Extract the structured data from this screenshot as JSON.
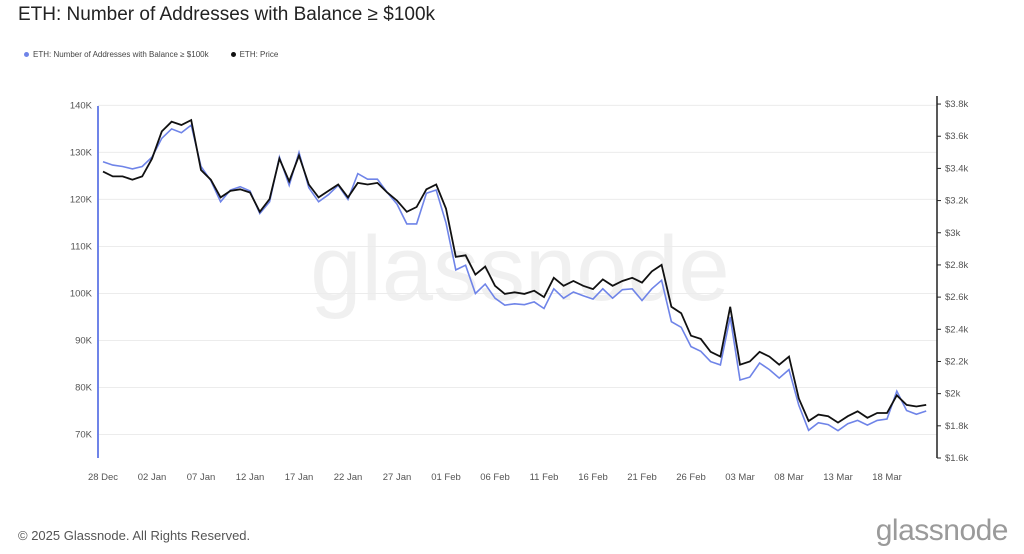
{
  "title": "ETH: Number of Addresses with Balance ≥ $100k",
  "footer": "© 2025 Glassnode. All Rights Reserved.",
  "logo_text": "glassnode",
  "watermark_text": "glassnode",
  "colors": {
    "addresses": "#6f84e8",
    "price": "#111111",
    "grid": "#ececec",
    "axis": "#222222"
  },
  "chart_data": {
    "type": "line",
    "x_ticks": [
      "28 Dec",
      "02 Jan",
      "07 Jan",
      "12 Jan",
      "17 Jan",
      "22 Jan",
      "27 Jan",
      "01 Feb",
      "06 Feb",
      "11 Feb",
      "16 Feb",
      "21 Feb",
      "26 Feb",
      "03 Mar",
      "08 Mar",
      "13 Mar",
      "18 Mar"
    ],
    "y_left_ticks": [
      "70K",
      "80K",
      "90K",
      "100K",
      "110K",
      "120K",
      "130K",
      "140K"
    ],
    "y_left_values": [
      70000,
      80000,
      90000,
      100000,
      110000,
      120000,
      130000,
      140000
    ],
    "y_right_ticks": [
      "$1.6k",
      "$1.8k",
      "$2k",
      "$2.2k",
      "$2.4k",
      "$2.6k",
      "$2.8k",
      "$3k",
      "$3.2k",
      "$3.4k",
      "$3.6k",
      "$3.8k"
    ],
    "y_right_values": [
      1600,
      1800,
      2000,
      2200,
      2400,
      2600,
      2800,
      3000,
      3200,
      3400,
      3600,
      3800
    ],
    "ylim_left": [
      65000,
      142000
    ],
    "ylim_right": [
      1600,
      3850
    ],
    "grid": true,
    "legend_position": "top-left",
    "start_date": "2024-12-28",
    "series": [
      {
        "name": "ETH: Number of Addresses with Balance ≥ $100k",
        "axis": "left",
        "values": [
          128000,
          127300,
          127000,
          126500,
          127000,
          129000,
          133000,
          135000,
          134200,
          135800,
          127000,
          124000,
          119500,
          122000,
          122700,
          121800,
          117000,
          119500,
          129000,
          123000,
          130000,
          122500,
          119500,
          121000,
          123000,
          120000,
          125500,
          124300,
          124300,
          121500,
          119000,
          114800,
          114800,
          121300,
          122000,
          115000,
          105000,
          106000,
          100000,
          102000,
          99000,
          97500,
          97800,
          97600,
          98200,
          96800,
          101000,
          99000,
          100300,
          99500,
          98800,
          101000,
          99000,
          100800,
          101000,
          98500,
          101000,
          102800,
          94000,
          92800,
          88700,
          87700,
          85500,
          84800,
          95000,
          81600,
          82200,
          85200,
          83800,
          82000,
          83800,
          76200,
          70900,
          72500,
          72100,
          70800,
          72300,
          73000,
          72000,
          73000,
          73300,
          79200,
          75100,
          74300,
          75000
        ]
      },
      {
        "name": "ETH: Price",
        "axis": "right",
        "values": [
          3380,
          3350,
          3350,
          3330,
          3350,
          3460,
          3630,
          3690,
          3670,
          3700,
          3390,
          3330,
          3220,
          3260,
          3270,
          3250,
          3130,
          3210,
          3460,
          3320,
          3480,
          3300,
          3220,
          3260,
          3300,
          3220,
          3310,
          3300,
          3310,
          3250,
          3200,
          3130,
          3160,
          3270,
          3300,
          3150,
          2850,
          2860,
          2740,
          2790,
          2670,
          2620,
          2630,
          2620,
          2640,
          2600,
          2720,
          2670,
          2700,
          2670,
          2650,
          2710,
          2670,
          2700,
          2720,
          2690,
          2760,
          2800,
          2540,
          2500,
          2360,
          2340,
          2260,
          2230,
          2540,
          2180,
          2200,
          2260,
          2230,
          2180,
          2230,
          1970,
          1830,
          1870,
          1860,
          1820,
          1860,
          1890,
          1850,
          1880,
          1880,
          1990,
          1930,
          1920,
          1930
        ]
      }
    ]
  }
}
